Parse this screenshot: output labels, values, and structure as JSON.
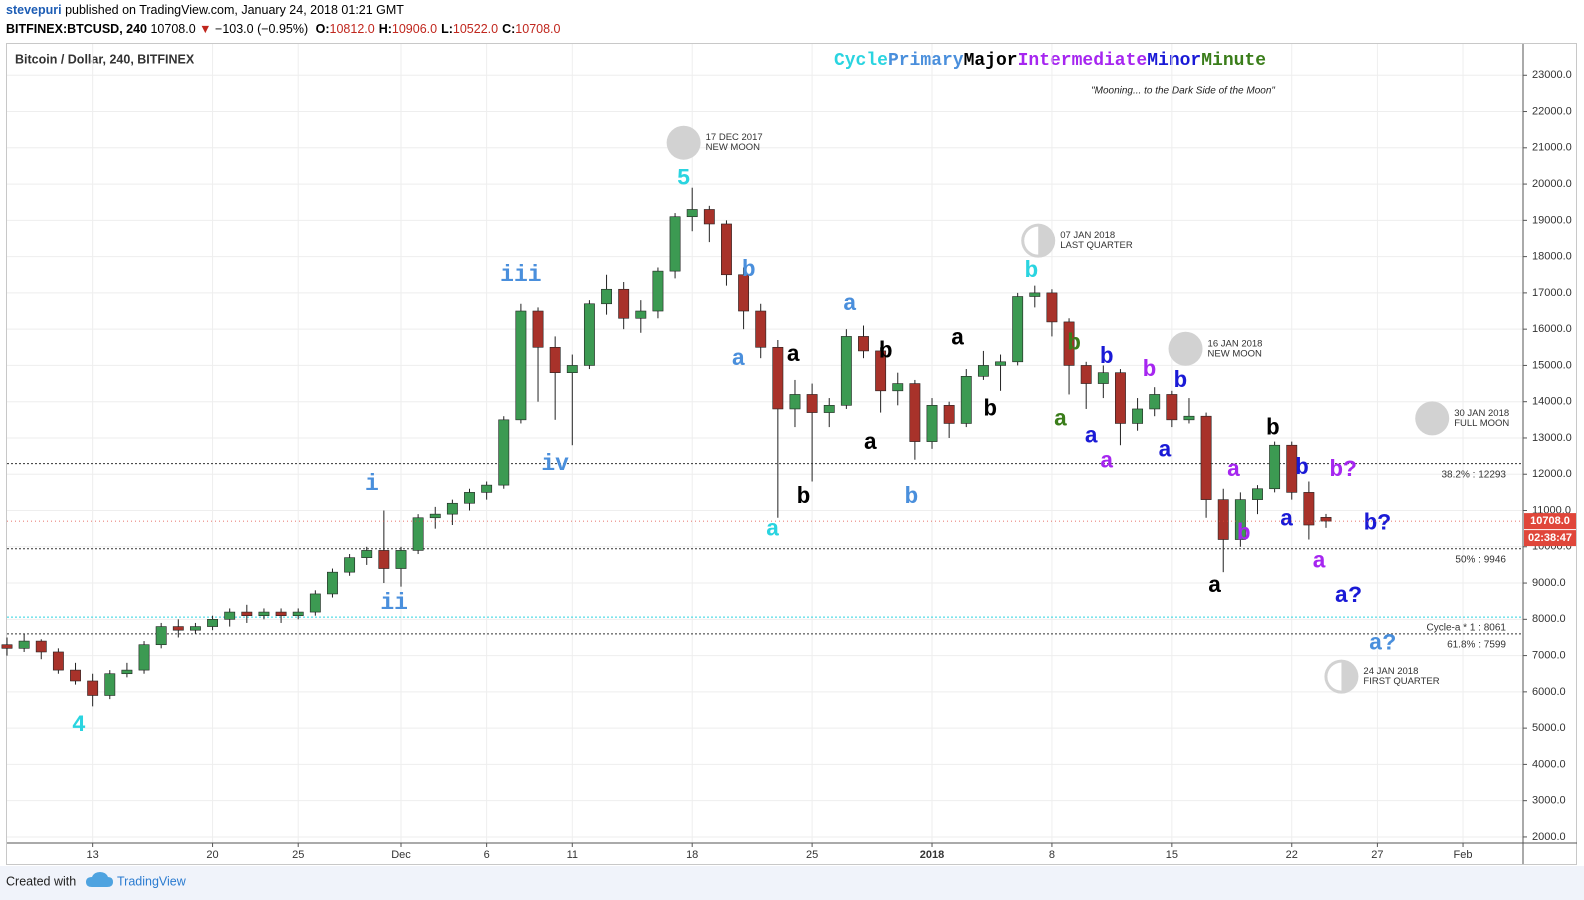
{
  "header": {
    "author": "stevepuri",
    "published": "published on TradingView.com, January 24, 2018 01:21 GMT",
    "symbol": "BITFINEX:BTCUSD, 240",
    "price": "10708.0",
    "arrow": "▼",
    "change": "−103.0 (−0.95%)",
    "ohlc": [
      {
        "key": "O:",
        "value": "10812.0"
      },
      {
        "key": "H:",
        "value": "10906.0"
      },
      {
        "key": "L:",
        "value": "10522.0"
      },
      {
        "key": "C:",
        "value": "10708.0"
      }
    ]
  },
  "chart_data": {
    "type": "candlestick",
    "title": "Bitcoin / Dollar, 240, BITFINEX",
    "subtitle": "\"Mooning... to the Dark Side of the Moon\"",
    "legend": [
      {
        "name": "Cycle",
        "color": "#2ad4e0"
      },
      {
        "name": "Primary",
        "color": "#4a8fdc"
      },
      {
        "name": "Major",
        "color": "#000000"
      },
      {
        "name": "Intermediate",
        "color": "#a626f0"
      },
      {
        "name": "Minor",
        "color": "#1a1ad6"
      },
      {
        "name": "Minute",
        "color": "#3a7d1a"
      }
    ],
    "up_color": "#3c9a52",
    "down_color": "#a8322a",
    "x": [
      8,
      9,
      10,
      11,
      12,
      13,
      14,
      15,
      16,
      17,
      18,
      19,
      20,
      21,
      22,
      23,
      24,
      25,
      26,
      27,
      28,
      29,
      30,
      31,
      32,
      33,
      34,
      35,
      36,
      37,
      38,
      39,
      40,
      41,
      42,
      43,
      44,
      45,
      46,
      47,
      48,
      49,
      50,
      51,
      52,
      53,
      54,
      55,
      56,
      57,
      58,
      59,
      60,
      61,
      62,
      63,
      64,
      65,
      66,
      67,
      68,
      69,
      70,
      71,
      72,
      73,
      74,
      75,
      76,
      77,
      78,
      79,
      80,
      81,
      82,
      83,
      84,
      85
    ],
    "open": [
      7300,
      7200,
      7400,
      7100,
      6600,
      6300,
      5900,
      6500,
      6600,
      7300,
      7800,
      7700,
      7800,
      8000,
      8200,
      8100,
      8200,
      8100,
      8200,
      8700,
      9300,
      9700,
      9900,
      9400,
      9900,
      10800,
      10900,
      11200,
      11500,
      11700,
      13500,
      16500,
      15500,
      14800,
      15000,
      16700,
      17100,
      16300,
      16500,
      17600,
      19100,
      19300,
      18900,
      17500,
      16500,
      15500,
      13800,
      14200,
      13700,
      13900,
      15800,
      15400,
      14300,
      14500,
      12900,
      13900,
      13400,
      14700,
      15000,
      15100,
      16900,
      17000,
      16200,
      15000,
      14500,
      14800,
      13400,
      13800,
      14200,
      13500,
      13600,
      11300,
      10200,
      11300,
      11600,
      12800,
      11500,
      10812
    ],
    "high": [
      7500,
      7600,
      7450,
      7200,
      6800,
      6500,
      6600,
      6800,
      7400,
      7900,
      8000,
      7900,
      8100,
      8300,
      8400,
      8300,
      8300,
      8300,
      8800,
      9400,
      9800,
      10000,
      11000,
      10000,
      10900,
      11100,
      11300,
      11600,
      11800,
      13600,
      16700,
      16600,
      15800,
      15300,
      16800,
      17500,
      17300,
      16800,
      17700,
      19200,
      19900,
      19400,
      19000,
      17700,
      16700,
      15700,
      14600,
      14500,
      14100,
      16000,
      16100,
      15500,
      14800,
      14600,
      14100,
      14000,
      14900,
      15400,
      15300,
      17000,
      17200,
      17100,
      16300,
      15100,
      15000,
      14900,
      14100,
      14400,
      14300,
      14100,
      13700,
      11600,
      11500,
      11700,
      12900,
      12900,
      11800,
      10906
    ],
    "low": [
      7000,
      7100,
      6900,
      6500,
      6200,
      5600,
      5800,
      6400,
      6500,
      7200,
      7500,
      7600,
      7700,
      7800,
      7900,
      8000,
      7900,
      8000,
      8100,
      8600,
      9200,
      9500,
      9000,
      8900,
      9800,
      10500,
      10600,
      11000,
      11300,
      11600,
      13400,
      14000,
      13500,
      12800,
      14900,
      16400,
      16000,
      15900,
      16300,
      17400,
      18700,
      18400,
      17200,
      16000,
      15200,
      10800,
      13300,
      11800,
      13300,
      13800,
      15200,
      13700,
      13900,
      12400,
      12700,
      13000,
      13300,
      14600,
      14300,
      15000,
      16600,
      15800,
      14200,
      13800,
      14100,
      12800,
      13200,
      13600,
      13300,
      13400,
      10800,
      9300,
      10000,
      10900,
      11500,
      11300,
      10200,
      10522
    ],
    "close": [
      7200,
      7400,
      7100,
      6600,
      6300,
      5900,
      6500,
      6600,
      7300,
      7800,
      7700,
      7800,
      8000,
      8200,
      8100,
      8200,
      8100,
      8200,
      8700,
      9300,
      9700,
      9900,
      9400,
      9900,
      10800,
      10900,
      11200,
      11500,
      11700,
      13500,
      16500,
      15500,
      14800,
      15000,
      16700,
      17100,
      16300,
      16500,
      17600,
      19100,
      19300,
      18900,
      17500,
      16500,
      15500,
      13800,
      14200,
      13700,
      13900,
      15800,
      15400,
      14300,
      14500,
      12900,
      13900,
      13400,
      14700,
      15000,
      15100,
      16900,
      17000,
      16200,
      15000,
      14500,
      14800,
      13400,
      13800,
      14200,
      13500,
      13600,
      11300,
      10200,
      11300,
      11600,
      12800,
      11500,
      10600,
      10708
    ],
    "xlim": [
      8,
      96.5
    ],
    "xticks": [
      13,
      20,
      25,
      {
        "value": 31,
        "label": "Dec"
      },
      {
        "value": 36,
        "label": "6"
      },
      {
        "value": 41,
        "label": "11"
      },
      {
        "value": 48,
        "label": "18"
      },
      {
        "value": 55,
        "label": "25"
      },
      {
        "value": 62,
        "label": "2018"
      },
      {
        "value": 69,
        "label": "8"
      },
      {
        "value": 76,
        "label": "15"
      },
      {
        "value": 83,
        "label": "22"
      },
      {
        "value": 88,
        "label": "27"
      },
      {
        "value": 93,
        "label": "Feb"
      }
    ],
    "ylim": [
      1833,
      23862
    ],
    "yticks": [
      {
        "value": 2000,
        "label": "2000.0"
      },
      {
        "value": 3000,
        "label": "3000.0"
      },
      {
        "value": 4000,
        "label": "4000.0"
      },
      {
        "value": 5000,
        "label": "5000.0"
      },
      {
        "value": 6000,
        "label": "6000.0"
      },
      {
        "value": 7000,
        "label": "7000.0"
      },
      {
        "value": 8000,
        "label": "8000.0"
      },
      {
        "value": 9000,
        "label": "9000.0"
      },
      {
        "value": 10000,
        "label": "10000.0"
      },
      {
        "value": 11000,
        "label": "11000.0"
      },
      {
        "value": 12000,
        "label": "12000.0"
      },
      {
        "value": 13000,
        "label": "13000.0"
      },
      {
        "value": 14000,
        "label": "14000.0"
      },
      {
        "value": 15000,
        "label": "15000.0"
      },
      {
        "value": 16000,
        "label": "16000.0"
      },
      {
        "value": 17000,
        "label": "17000.0"
      },
      {
        "value": 18000,
        "label": "18000.0"
      },
      {
        "value": 19000,
        "label": "19000.0"
      },
      {
        "value": 20000,
        "label": "20000.0"
      },
      {
        "value": 21000,
        "label": "21000.0"
      },
      {
        "value": 22000,
        "label": "22000.0"
      },
      {
        "value": 23000,
        "label": "23000.0"
      }
    ],
    "grid": true,
    "levels": [
      {
        "label": "38.2% : 12293",
        "value": 12293,
        "color": "#333333"
      },
      {
        "label": "50% : 9946",
        "value": 9946,
        "color": "#333333"
      },
      {
        "label": "Cycle-a * 1 : 8061",
        "value": 8061,
        "color": "#2ad4e0"
      },
      {
        "label": "61.8% : 7599",
        "value": 7599,
        "color": "#333333"
      }
    ],
    "annotations": [
      {
        "text": "4",
        "color": "#2ad4e0",
        "x": 12.2,
        "y": 5090
      },
      {
        "text": "i",
        "color": "#4a8fdc",
        "x": 29.3,
        "y": 11730
      },
      {
        "text": "ii",
        "color": "#4a8fdc",
        "x": 30.6,
        "y": 8450
      },
      {
        "text": "iii",
        "color": "#4a8fdc",
        "x": 38,
        "y": 17490
      },
      {
        "text": "iv",
        "color": "#4a8fdc",
        "x": 40,
        "y": 12290
      },
      {
        "text": "5",
        "color": "#2ad4e0",
        "x": 47.5,
        "y": 20160
      },
      {
        "text": "b",
        "color": "#4a8fdc",
        "x": 51.3,
        "y": 17630
      },
      {
        "text": "a",
        "color": "#4a8fdc",
        "x": 50.7,
        "y": 15180
      },
      {
        "text": "a",
        "color": "#000000",
        "x": 53.9,
        "y": 15290
      },
      {
        "text": "a",
        "color": "#2ad4e0",
        "x": 52.7,
        "y": 10480
      },
      {
        "text": "b",
        "color": "#000000",
        "x": 54.5,
        "y": 11370
      },
      {
        "text": "a",
        "color": "#4a8fdc",
        "x": 57.2,
        "y": 16690
      },
      {
        "text": "b",
        "color": "#000000",
        "x": 59.3,
        "y": 15380
      },
      {
        "text": "a",
        "color": "#000000",
        "x": 58.4,
        "y": 12870
      },
      {
        "text": "b",
        "color": "#4a8fdc",
        "x": 60.8,
        "y": 11370
      },
      {
        "text": "a",
        "color": "#000000",
        "x": 63.5,
        "y": 15740
      },
      {
        "text": "b",
        "color": "#000000",
        "x": 65.4,
        "y": 13790
      },
      {
        "text": "b",
        "color": "#2ad4e0",
        "x": 67.8,
        "y": 17600
      },
      {
        "text": "b",
        "color": "#3a7d1a",
        "x": 70.3,
        "y": 15600
      },
      {
        "text": "a",
        "color": "#3a7d1a",
        "x": 69.5,
        "y": 13510
      },
      {
        "text": "b",
        "color": "#1a1ad6",
        "x": 72.2,
        "y": 15240
      },
      {
        "text": "a",
        "color": "#1a1ad6",
        "x": 71.3,
        "y": 13040
      },
      {
        "text": "a",
        "color": "#a626f0",
        "x": 72.2,
        "y": 12350
      },
      {
        "text": "b",
        "color": "#a626f0",
        "x": 74.7,
        "y": 14880
      },
      {
        "text": "b",
        "color": "#1a1ad6",
        "x": 76.5,
        "y": 14570
      },
      {
        "text": "a",
        "color": "#1a1ad6",
        "x": 75.6,
        "y": 12650
      },
      {
        "text": "a",
        "color": "#000000",
        "x": 78.5,
        "y": 8920
      },
      {
        "text": "a",
        "color": "#a626f0",
        "x": 79.6,
        "y": 12120
      },
      {
        "text": "b",
        "color": "#a626f0",
        "x": 80.2,
        "y": 10370
      },
      {
        "text": "b",
        "color": "#000000",
        "x": 81.9,
        "y": 13260
      },
      {
        "text": "b",
        "color": "#1a1ad6",
        "x": 83.6,
        "y": 12180
      },
      {
        "text": "a",
        "color": "#1a1ad6",
        "x": 82.7,
        "y": 10760
      },
      {
        "text": "a",
        "color": "#a626f0",
        "x": 84.6,
        "y": 9590
      },
      {
        "text": "b?",
        "color": "#a626f0",
        "x": 86,
        "y": 12120
      },
      {
        "text": "b?",
        "color": "#1a1ad6",
        "x": 88,
        "y": 10650
      },
      {
        "text": "a?",
        "color": "#1a1ad6",
        "x": 86.3,
        "y": 8650
      },
      {
        "text": "a?",
        "color": "#4a8fdc",
        "x": 88.3,
        "y": 7340
      }
    ],
    "moons": [
      {
        "date": "17 DEC 2017",
        "phase": "NEW MOON",
        "half": false,
        "x": 47.5,
        "y": 21140
      },
      {
        "date": "07 JAN 2018",
        "phase": "LAST QUARTER",
        "half": true,
        "x": 68.2,
        "y": 18440
      },
      {
        "date": "16 JAN 2018",
        "phase": "NEW MOON",
        "half": false,
        "x": 76.8,
        "y": 15460
      },
      {
        "date": "30 JAN 2018",
        "phase": "FULL MOON",
        "half": false,
        "x": 91.2,
        "y": 13540
      },
      {
        "date": "24 JAN 2018",
        "phase": "FIRST QUARTER",
        "half": true,
        "x": 85.9,
        "y": 6420
      }
    ],
    "last_price": {
      "label": "10708.0",
      "value": 10708,
      "countdown": "02:38:47",
      "color": "#e0463a"
    }
  },
  "footer": {
    "created": "Created with",
    "brand": "TradingView"
  }
}
